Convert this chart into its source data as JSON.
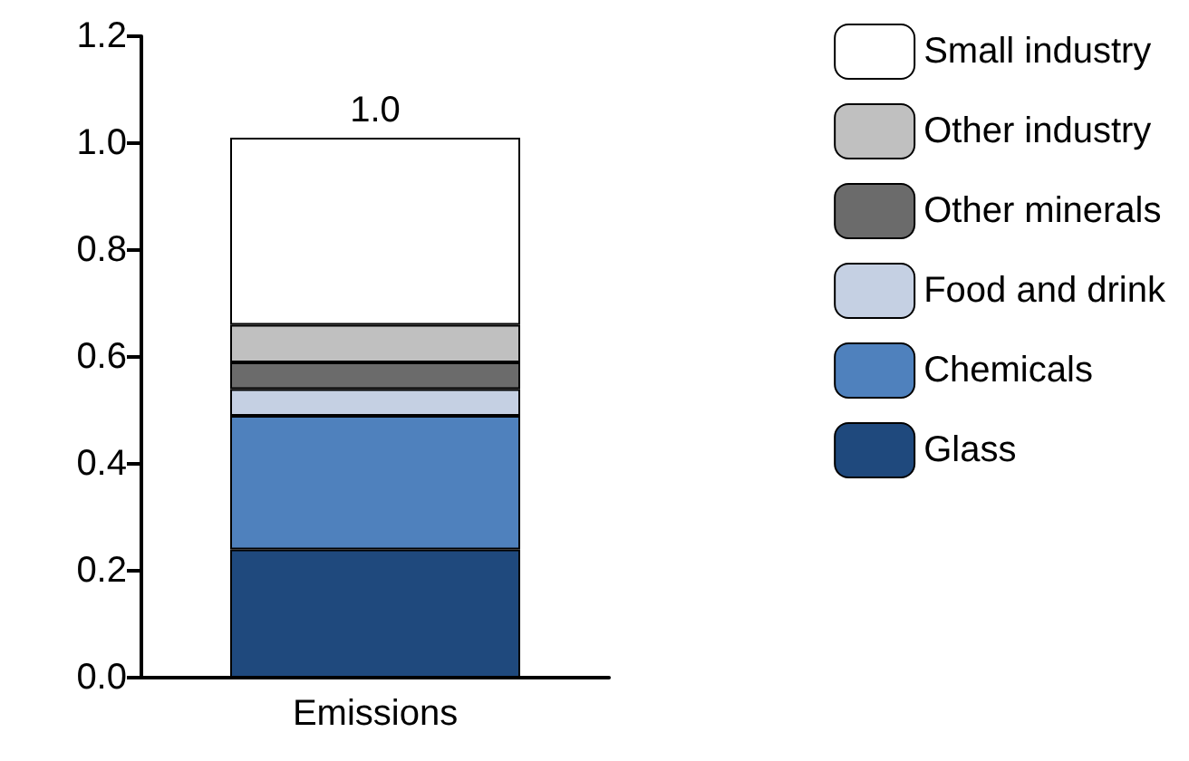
{
  "chart_data": {
    "type": "bar",
    "stacked": true,
    "categories": [
      "Emissions"
    ],
    "series": [
      {
        "name": "Glass",
        "color": "#1f497d",
        "values": [
          0.24
        ]
      },
      {
        "name": "Chemicals",
        "color": "#4f81bd",
        "values": [
          0.25
        ]
      },
      {
        "name": "Food and drink",
        "color": "#c5d0e3",
        "values": [
          0.05
        ]
      },
      {
        "name": "Other minerals",
        "color": "#6b6b6b",
        "values": [
          0.05
        ]
      },
      {
        "name": "Other industry",
        "color": "#c0c0c0",
        "values": [
          0.07
        ]
      },
      {
        "name": "Small industry",
        "color": "#ffffff",
        "values": [
          0.35
        ]
      }
    ],
    "ylim": [
      0,
      1.2
    ],
    "yticks": [
      {
        "value": 0,
        "label": "0.0"
      },
      {
        "value": 0.2,
        "label": "0.2"
      },
      {
        "value": 0.4,
        "label": "0.4"
      },
      {
        "value": 0.6,
        "label": "0.6"
      },
      {
        "value": 0.8,
        "label": "0.8"
      },
      {
        "value": 1.0,
        "label": "1.0"
      },
      {
        "value": 1.2,
        "label": "1.2"
      }
    ],
    "totals": [
      "1.0"
    ],
    "legend": "right",
    "grid": false
  }
}
